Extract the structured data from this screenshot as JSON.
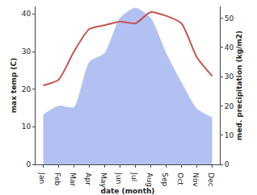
{
  "chart_data": {
    "type": "line",
    "x_label": "date (month)",
    "y_label": "max temp (C)",
    "y2_label": "med. precipitation (kg/m2)",
    "categories": [
      "Jan",
      "Feb",
      "Mar",
      "Apr",
      "May",
      "Jun",
      "Jul",
      "Aug",
      "Sep",
      "Oct",
      "Nov",
      "Dec"
    ],
    "series": [
      {
        "name": "max temp",
        "type": "line",
        "color": "#c8534f",
        "values": [
          21,
          22.5,
          30,
          36,
          37,
          38,
          37.5,
          40.5,
          39.5,
          37.5,
          28.5,
          23.5
        ]
      },
      {
        "name": "med. precipitation",
        "type": "area",
        "axis": "y2",
        "color": "#b3c1f2",
        "values": [
          17,
          20,
          19.5,
          35,
          38,
          50,
          53.5,
          50,
          38,
          28,
          19,
          16
        ]
      }
    ],
    "ylim": [
      0,
      42
    ],
    "yticks": [
      0,
      10,
      20,
      30,
      40
    ],
    "y2lim": [
      0,
      54
    ],
    "y2ticks": [
      0,
      10,
      20,
      30,
      40,
      50
    ],
    "grid": false
  }
}
